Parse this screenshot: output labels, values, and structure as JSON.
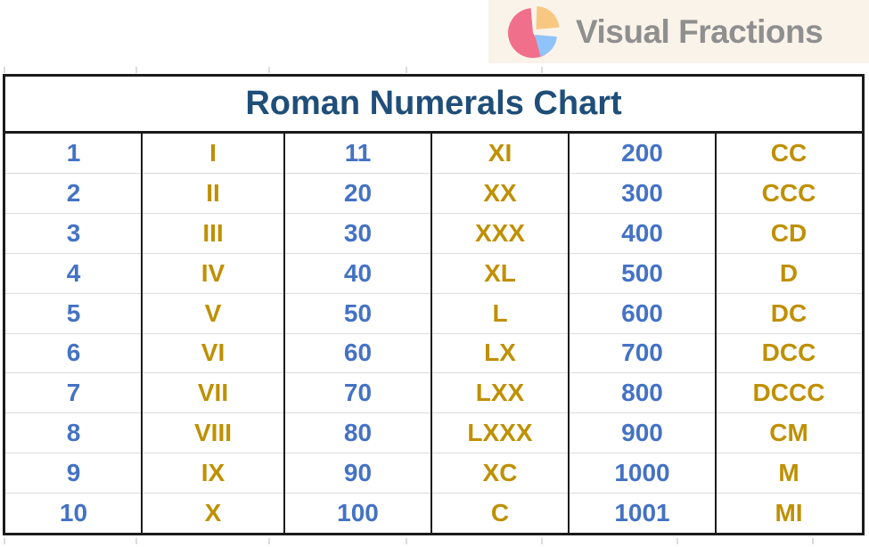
{
  "logo": {
    "brand": "Visual Fractions",
    "icon": "pie-chart-icon",
    "colors": {
      "background": "#FAF3EA",
      "text": "#8F8F8F",
      "pie_pink": "#F0708C",
      "pie_orange": "#F8C882",
      "pie_blue": "#8FC3F9"
    }
  },
  "table": {
    "title": "Roman Numerals Chart",
    "colors": {
      "title": "#1F4E79",
      "number": "#4472C4",
      "roman": "#BF9000",
      "border": "#1B1B1B",
      "row_separator": "#DCDCDC"
    },
    "rows": [
      [
        "1",
        "I",
        "11",
        "XI",
        "200",
        "CC"
      ],
      [
        "2",
        "II",
        "20",
        "XX",
        "300",
        "CCC"
      ],
      [
        "3",
        "III",
        "30",
        "XXX",
        "400",
        "CD"
      ],
      [
        "4",
        "IV",
        "40",
        "XL",
        "500",
        "D"
      ],
      [
        "5",
        "V",
        "50",
        "L",
        "600",
        "DC"
      ],
      [
        "6",
        "VI",
        "60",
        "LX",
        "700",
        "DCC"
      ],
      [
        "7",
        "VII",
        "70",
        "LXX",
        "800",
        "DCCC"
      ],
      [
        "8",
        "VIII",
        "80",
        "LXXX",
        "900",
        "CM"
      ],
      [
        "9",
        "IX",
        "90",
        "XC",
        "1000",
        "M"
      ],
      [
        "10",
        "X",
        "100",
        "C",
        "1001",
        "MI"
      ]
    ]
  },
  "chart_data": {
    "type": "table",
    "title": "Roman Numerals Chart",
    "layout": "10 rows x 6 columns; columns alternate arabic number / roman numeral; no header row",
    "rows": [
      [
        "1",
        "I",
        "11",
        "XI",
        "200",
        "CC"
      ],
      [
        "2",
        "II",
        "20",
        "XX",
        "300",
        "CCC"
      ],
      [
        "3",
        "III",
        "30",
        "XXX",
        "400",
        "CD"
      ],
      [
        "4",
        "IV",
        "40",
        "XL",
        "500",
        "D"
      ],
      [
        "5",
        "V",
        "50",
        "L",
        "600",
        "DC"
      ],
      [
        "6",
        "VI",
        "60",
        "LX",
        "700",
        "DCC"
      ],
      [
        "7",
        "VII",
        "70",
        "LXX",
        "800",
        "DCCC"
      ],
      [
        "8",
        "VIII",
        "80",
        "LXXX",
        "900",
        "CM"
      ],
      [
        "9",
        "IX",
        "90",
        "XC",
        "1000",
        "M"
      ],
      [
        "10",
        "X",
        "100",
        "C",
        "1001",
        "MI"
      ]
    ]
  }
}
